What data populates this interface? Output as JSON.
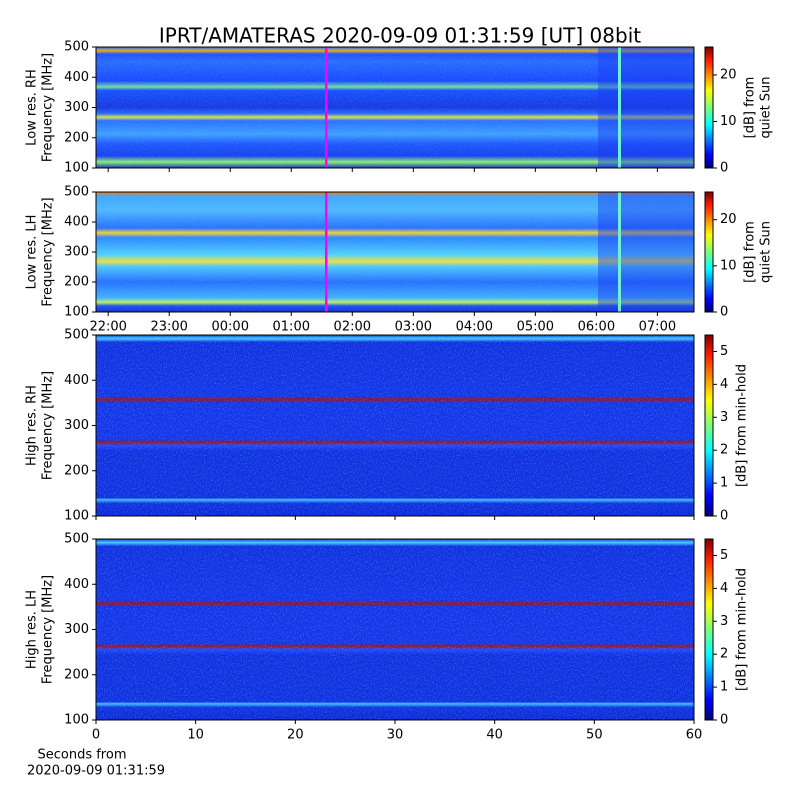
{
  "title": "IPRT/AMATERAS 2020-09-09 01:31:59 [UT]   08bit",
  "chart_data": [
    {
      "type": "heatmap",
      "ylabel": [
        "Low res. RH",
        "Frequency [MHz]"
      ],
      "ylim": [
        100,
        500
      ],
      "yticks": [
        100,
        200,
        300,
        400,
        500
      ],
      "xlim": [
        21.8,
        31.6
      ],
      "sharex": true,
      "colorbar": {
        "label": [
          "[dB] from",
          "quiet Sun"
        ],
        "lim": [
          0,
          26
        ],
        "ticks": [
          0,
          10,
          20
        ]
      }
    },
    {
      "type": "heatmap",
      "ylabel": [
        "Low res. LH",
        "Frequency [MHz]"
      ],
      "ylim": [
        100,
        500
      ],
      "yticks": [
        100,
        200,
        300,
        400,
        500
      ],
      "xlim": [
        21.8,
        31.6
      ],
      "xticks": [
        {
          "value": 22,
          "label": "22:00"
        },
        {
          "value": 23,
          "label": "23:00"
        },
        {
          "value": 24,
          "label": "00:00"
        },
        {
          "value": 25,
          "label": "01:00"
        },
        {
          "value": 26,
          "label": "02:00"
        },
        {
          "value": 27,
          "label": "03:00"
        },
        {
          "value": 28,
          "label": "04:00"
        },
        {
          "value": 29,
          "label": "05:00"
        },
        {
          "value": 30,
          "label": "06:00"
        },
        {
          "value": 31,
          "label": "07:00"
        }
      ],
      "colorbar": {
        "label": [
          "[dB] from",
          "quiet Sun"
        ],
        "lim": [
          0,
          26
        ],
        "ticks": [
          0,
          10,
          20
        ]
      }
    },
    {
      "type": "heatmap",
      "ylabel": [
        "High res. RH",
        "Frequency [MHz]"
      ],
      "ylim": [
        100,
        500
      ],
      "yticks": [
        100,
        200,
        300,
        400,
        500
      ],
      "xlim": [
        0,
        60
      ],
      "sharex": true,
      "colorbar": {
        "label": [
          "[dB] from min-hold"
        ],
        "lim": [
          0,
          5.5
        ],
        "ticks": [
          0,
          1,
          2,
          3,
          4,
          5
        ]
      }
    },
    {
      "type": "heatmap",
      "ylabel": [
        "High res. LH",
        "Frequency [MHz]"
      ],
      "ylim": [
        100,
        500
      ],
      "yticks": [
        100,
        200,
        300,
        400,
        500
      ],
      "xlim": [
        0,
        60
      ],
      "xticks": [
        0,
        10,
        20,
        30,
        40,
        50,
        60
      ],
      "xlabel": [
        "Seconds from",
        "2020-09-09 01:31:59"
      ],
      "colorbar": {
        "label": [
          "[dB] from min-hold"
        ],
        "lim": [
          0,
          5.5
        ],
        "ticks": [
          0,
          1,
          2,
          3,
          4,
          5
        ]
      }
    }
  ]
}
